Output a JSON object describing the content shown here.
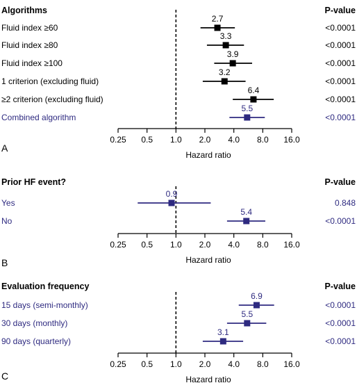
{
  "colors": {
    "black": "#000000",
    "blue": "#2e2a80"
  },
  "chart_data": [
    {
      "type": "forest",
      "panel_letter": "A",
      "header": "Algorithms",
      "pvalue_header": "P-value",
      "xlabel": "Hazard ratio",
      "x_scale": "log",
      "xlim": [
        0.25,
        16.0
      ],
      "ticks": [
        "0.25",
        "0.5",
        "1.0",
        "2.0",
        "4.0",
        "8.0",
        "16.0"
      ],
      "reference_line": 1.0,
      "rows": [
        {
          "label": "Fluid index ≥60",
          "hr": 2.7,
          "hr_label": "2.7",
          "lo": 1.8,
          "hi": 4.1,
          "p": "<0.0001",
          "color": "black"
        },
        {
          "label": "Fluid index ≥80",
          "hr": 3.3,
          "hr_label": "3.3",
          "lo": 2.1,
          "hi": 5.1,
          "p": "<0.0001",
          "color": "black"
        },
        {
          "label": "Fluid index ≥100",
          "hr": 3.9,
          "hr_label": "3.9",
          "lo": 2.5,
          "hi": 6.2,
          "p": "<0.0001",
          "color": "black"
        },
        {
          "label": "1 criterion (excluding fluid)",
          "hr": 3.2,
          "hr_label": "3.2",
          "lo": 1.9,
          "hi": 5.3,
          "p": "<0.0001",
          "color": "black"
        },
        {
          "label": "≥2 criterion (excluding fluid)",
          "hr": 6.4,
          "hr_label": "6.4",
          "lo": 3.9,
          "hi": 10.4,
          "p": "<0.0001",
          "color": "black"
        },
        {
          "label": "Combined algorithm",
          "hr": 5.5,
          "hr_label": "5.5",
          "lo": 3.6,
          "hi": 8.4,
          "p": "<0.0001",
          "color": "blue"
        }
      ]
    },
    {
      "type": "forest",
      "panel_letter": "B",
      "header": "Prior HF event?",
      "pvalue_header": "P-value",
      "xlabel": "Hazard ratio",
      "x_scale": "log",
      "xlim": [
        0.25,
        16.0
      ],
      "ticks": [
        "0.25",
        "0.5",
        "1.0",
        "2.0",
        "4.0",
        "8.0",
        "16.0"
      ],
      "reference_line": 1.0,
      "rows": [
        {
          "label": "Yes",
          "hr": 0.9,
          "hr_label": "0.9",
          "lo": 0.4,
          "hi": 2.3,
          "p": "0.848",
          "color": "blue"
        },
        {
          "label": "No",
          "hr": 5.4,
          "hr_label": "5.4",
          "lo": 3.4,
          "hi": 8.5,
          "p": "<0.0001",
          "color": "blue"
        }
      ]
    },
    {
      "type": "forest",
      "panel_letter": "C",
      "header": "Evaluation frequency",
      "pvalue_header": "P-value",
      "xlabel": "Hazard ratio",
      "x_scale": "log",
      "xlim": [
        0.25,
        16.0
      ],
      "ticks": [
        "0.25",
        "0.5",
        "1.0",
        "2.0",
        "4.0",
        "8.0",
        "16.0"
      ],
      "reference_line": 1.0,
      "rows": [
        {
          "label": "15 days (semi-monthly)",
          "hr": 6.9,
          "hr_label": "6.9",
          "lo": 4.5,
          "hi": 10.5,
          "p": "<0.0001",
          "color": "blue"
        },
        {
          "label": "30 days (monthly)",
          "hr": 5.5,
          "hr_label": "5.5",
          "lo": 3.4,
          "hi": 8.7,
          "p": "<0.0001",
          "color": "blue"
        },
        {
          "label": "90 days (quarterly)",
          "hr": 3.1,
          "hr_label": "3.1",
          "lo": 1.9,
          "hi": 5.0,
          "p": "<0.0001",
          "color": "blue"
        }
      ]
    }
  ]
}
